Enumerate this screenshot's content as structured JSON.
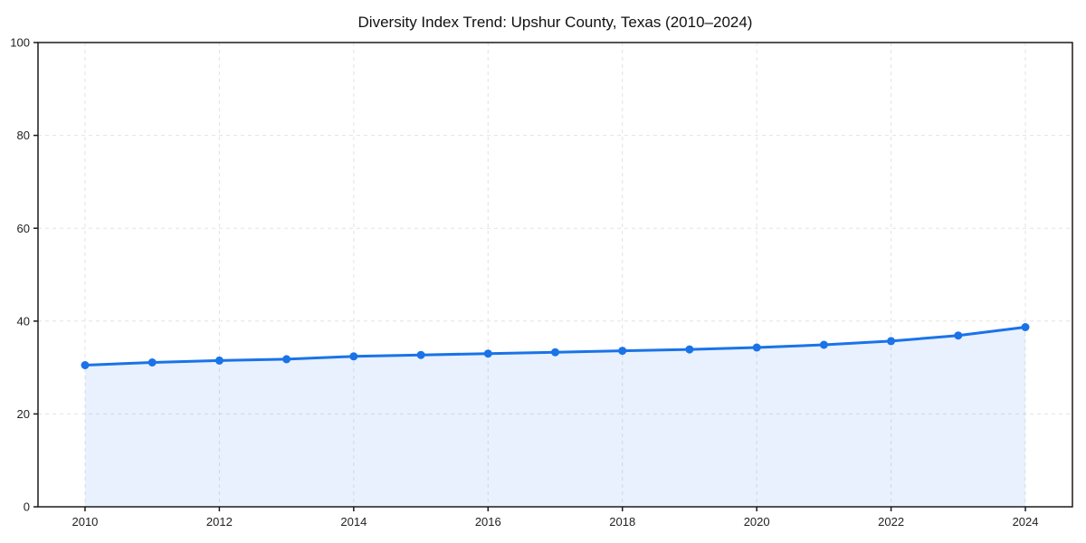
{
  "chart_data": {
    "type": "area",
    "title": "Diversity Index Trend: Upshur County, Texas (2010–2024)",
    "x": [
      2010,
      2011,
      2012,
      2013,
      2014,
      2015,
      2016,
      2017,
      2018,
      2019,
      2020,
      2021,
      2022,
      2023,
      2024
    ],
    "values": [
      30.5,
      31.1,
      31.5,
      31.8,
      32.4,
      32.7,
      33.0,
      33.3,
      33.6,
      33.9,
      34.3,
      34.9,
      35.7,
      36.9,
      38.7
    ],
    "xlabel": "",
    "ylabel": "",
    "xlim": [
      2009.3,
      2024.7
    ],
    "ylim": [
      0,
      100
    ],
    "xticks": [
      2010,
      2012,
      2014,
      2016,
      2018,
      2020,
      2022,
      2024
    ],
    "yticks": [
      0,
      20,
      40,
      60,
      80,
      100
    ],
    "grid": true,
    "grid_style": "dashed",
    "legend": false,
    "colors": {
      "line": "#1a73e8",
      "marker": "#1a73e8",
      "area_fill": "#1a73e8",
      "grid": "#e2e2e2",
      "axis": "#1a1a1a",
      "tick_label": "#222222",
      "title": "#111111",
      "background": "#ffffff"
    },
    "area_fill_opacity": 0.1
  }
}
